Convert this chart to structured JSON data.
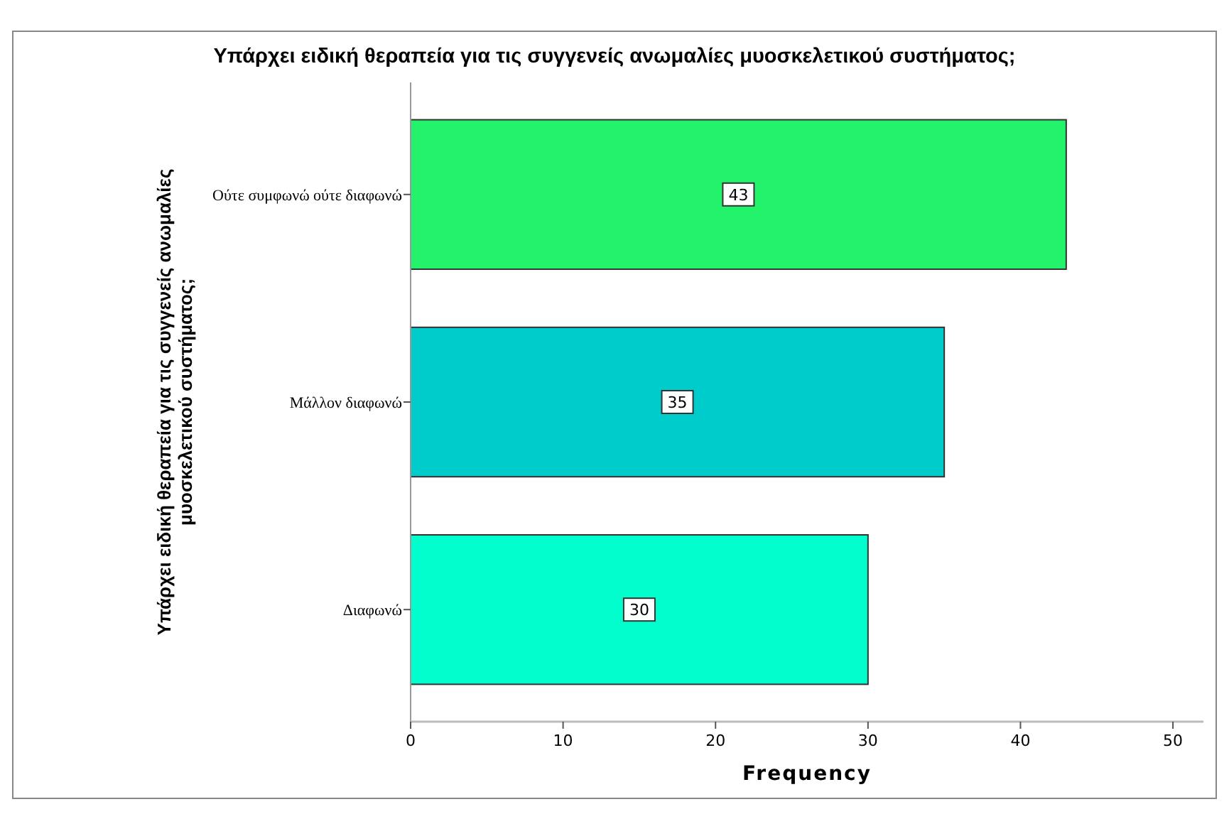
{
  "chart_data": {
    "type": "bar",
    "orientation": "horizontal",
    "title": "Υπάρχει ειδική θεραπεία για τις συγγενείς ανωμαλίες μυοσκελετικού συστήματος;",
    "xlabel": "Frequency",
    "ylabel": "Υπάρχει ειδική θεραπεία για τις συγγενείς ανωμαλίες μυοσκελετικού συστήματος;",
    "categories": [
      "Ούτε συμφωνώ ούτε διαφωνώ",
      "Μάλλον διαφωνώ",
      "Διαφωνώ"
    ],
    "values": [
      43,
      35,
      30
    ],
    "colors": [
      "#22f36a",
      "#00cccc",
      "#00ffcc"
    ],
    "xlim": [
      0,
      52
    ],
    "xticks": [
      0,
      10,
      20,
      30,
      40,
      50
    ],
    "data_labels": true,
    "grid": false
  }
}
